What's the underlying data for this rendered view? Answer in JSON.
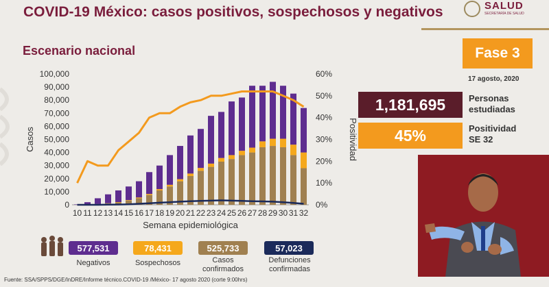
{
  "header": {
    "title": "COVID-19 México: casos positivos, sospechosos y negativos",
    "logo_name": "SALUD",
    "logo_sub": "SECRETARÍA DE SALUD"
  },
  "section_title": "Escenario nacional",
  "phase": {
    "label": "Fase 3",
    "color": "#f39a1e"
  },
  "date": "17 agosto, 2020",
  "stats": {
    "studied": {
      "value": "1,181,695",
      "label_line1": "Personas",
      "label_line2": "estudiadas",
      "color": "#5a1d2a"
    },
    "positivity": {
      "value": "45%",
      "label_line1": "Positividad",
      "label_line2": "SE 32",
      "color": "#f39a1e"
    }
  },
  "bottom_stats": [
    {
      "value": "577,531",
      "label": "Negativos",
      "color": "#5e2d8f"
    },
    {
      "value": "78,431",
      "label": "Sospechosos",
      "color": "#f5a81c"
    },
    {
      "value": "525,733",
      "label": "Casos confirmados",
      "color": "#a08050"
    },
    {
      "value": "57,023",
      "label": "Defunciones confirmadas",
      "color": "#1b2a5a"
    }
  ],
  "footer": "Fuente: SSA/SPPS/DGE/InDRE/Informe técnico.COVID-19 /México- 17 agosto 2020 (corte 9:00hrs)",
  "chart_data": {
    "type": "bar",
    "stacked": true,
    "xlabel": "Semana epidemiológica",
    "ylabel": "Casos",
    "y2label": "Positividad",
    "categories": [
      "10",
      "11",
      "12",
      "13",
      "14",
      "15",
      "16",
      "17",
      "18",
      "19",
      "20",
      "21",
      "22",
      "23",
      "24",
      "25",
      "26",
      "27",
      "28",
      "29",
      "30",
      "31",
      "32"
    ],
    "ylim": [
      0,
      100000
    ],
    "yticks": [
      "0",
      "10,000",
      "20,000",
      "30,000",
      "40,000",
      "50,000",
      "60,000",
      "70,000",
      "80,000",
      "90,000",
      "100,000"
    ],
    "y2lim": [
      0,
      60
    ],
    "y2ticks": [
      "0%",
      "10%",
      "20%",
      "30%",
      "40%",
      "50%",
      "60%"
    ],
    "grid": false,
    "series": [
      {
        "key": "confirmed",
        "color": "#a08050",
        "values": [
          0,
          200,
          500,
          1000,
          1800,
          3200,
          5000,
          7500,
          11000,
          14000,
          18000,
          22000,
          26000,
          29000,
          33000,
          35000,
          38000,
          40000,
          44000,
          45000,
          44000,
          38000,
          28000
        ]
      },
      {
        "key": "suspected",
        "color": "#f5a81c",
        "values": [
          0,
          100,
          100,
          200,
          300,
          400,
          600,
          800,
          1000,
          1300,
          1600,
          1900,
          2200,
          2500,
          2800,
          3000,
          3300,
          3700,
          4500,
          5500,
          6500,
          8000,
          12000
        ]
      },
      {
        "key": "negative",
        "color": "#5e2d8f",
        "values": [
          300,
          1700,
          4400,
          6800,
          8900,
          10400,
          12400,
          16700,
          18000,
          22700,
          25400,
          29100,
          29800,
          36500,
          35200,
          41000,
          40700,
          47300,
          42500,
          43500,
          40500,
          39000,
          34000
        ]
      }
    ],
    "line_series": [
      {
        "key": "positivity",
        "axis": "right",
        "color": "#f39a1e",
        "values": [
          10,
          20,
          18,
          18,
          25,
          29,
          33,
          40,
          42,
          42,
          45,
          47,
          48,
          50,
          50,
          51,
          52,
          52,
          52,
          52,
          50,
          48,
          45
        ]
      },
      {
        "key": "deaths",
        "axis": "left",
        "color": "#1b2a5a",
        "values": [
          0,
          0,
          0,
          100,
          200,
          400,
          800,
          1200,
          1600,
          2000,
          2400,
          2800,
          3000,
          3200,
          3400,
          3200,
          3000,
          2800,
          2600,
          2400,
          2000,
          1400,
          800
        ]
      }
    ]
  }
}
